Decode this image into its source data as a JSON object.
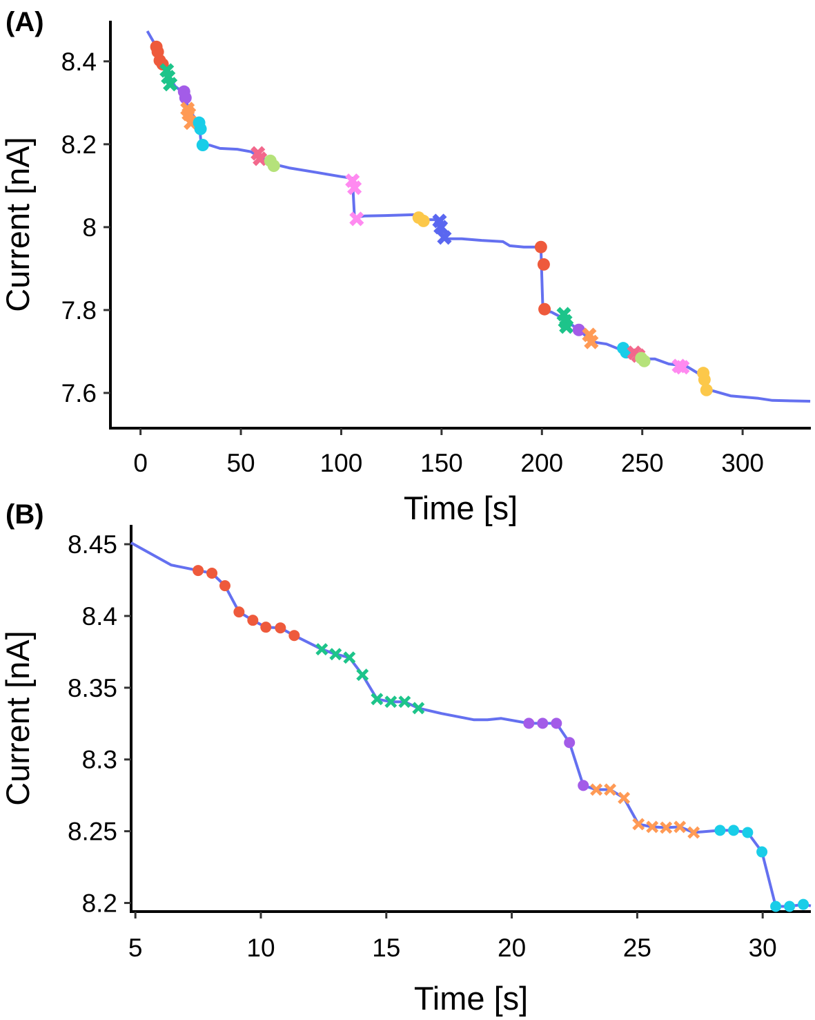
{
  "colors": {
    "line": "#6470F0",
    "red": "#EE5A3C",
    "green": "#1DC48A",
    "purple": "#A35CE8",
    "orange": "#FF9A55",
    "cyan": "#19CDE8",
    "rose": "#F2688C",
    "lime": "#B5E27A",
    "pink": "#FF8AF0",
    "yellow": "#FCC84A",
    "blue": "#5A67F0"
  },
  "chart_data": [
    {
      "panel_label": "(A)",
      "type": "line",
      "xlabel": "Time [s]",
      "ylabel": "Current [nA]",
      "xlim": [
        -15,
        334
      ],
      "ylim": [
        7.515,
        8.498
      ],
      "xticks": [
        0,
        50,
        100,
        150,
        200,
        250,
        300
      ],
      "xtick_labels": [
        "0",
        "50",
        "100",
        "150",
        "200",
        "250",
        "300"
      ],
      "yticks": [
        8.4,
        8.2,
        8.0,
        7.8,
        7.6
      ],
      "ytick_labels": [
        "8.4",
        "8.2",
        "8",
        "7.8",
        "7.6"
      ],
      "grid": false,
      "line": [
        [
          3.4,
          8.473
        ],
        [
          7.9,
          8.435
        ],
        [
          12,
          8.382
        ],
        [
          17.2,
          8.34
        ],
        [
          21.7,
          8.323
        ],
        [
          24.1,
          8.282
        ],
        [
          29.2,
          8.252
        ],
        [
          30.3,
          8.198
        ],
        [
          34.4,
          8.198
        ],
        [
          39.6,
          8.19
        ],
        [
          48.2,
          8.188
        ],
        [
          55,
          8.182
        ],
        [
          60.2,
          8.168
        ],
        [
          65.4,
          8.153
        ],
        [
          74,
          8.143
        ],
        [
          87.7,
          8.132
        ],
        [
          99.8,
          8.122
        ],
        [
          105.6,
          8.118
        ],
        [
          106.6,
          8.023
        ],
        [
          111.8,
          8.027
        ],
        [
          122,
          8.028
        ],
        [
          136,
          8.03
        ],
        [
          140.5,
          8.018
        ],
        [
          146.9,
          8.018
        ],
        [
          151.4,
          7.972
        ],
        [
          160,
          7.972
        ],
        [
          170,
          7.968
        ],
        [
          180.6,
          7.965
        ],
        [
          184,
          7.955
        ],
        [
          191,
          7.952
        ],
        [
          199.5,
          7.952
        ],
        [
          200.5,
          7.798
        ],
        [
          204.7,
          7.795
        ],
        [
          209.8,
          7.782
        ],
        [
          218.4,
          7.752
        ],
        [
          225.3,
          7.723
        ],
        [
          232.2,
          7.718
        ],
        [
          242.5,
          7.698
        ],
        [
          251,
          7.682
        ],
        [
          256.3,
          7.682
        ],
        [
          263.2,
          7.67
        ],
        [
          271.8,
          7.665
        ],
        [
          280.4,
          7.64
        ],
        [
          283.8,
          7.607
        ],
        [
          294,
          7.593
        ],
        [
          307.9,
          7.587
        ],
        [
          314.8,
          7.582
        ],
        [
          333.7,
          7.58
        ]
      ],
      "markers": [
        {
          "color": "red",
          "shape": "circle",
          "points": [
            [
              7.9,
              8.435
            ],
            [
              8.6,
              8.423
            ],
            [
              9.6,
              8.402
            ],
            [
              11,
              8.393
            ],
            [
              199.5,
              7.952
            ],
            [
              200.9,
              7.91
            ],
            [
              201.3,
              7.802
            ]
          ]
        },
        {
          "color": "green",
          "shape": "x",
          "points": [
            [
              13.1,
              8.378
            ],
            [
              13.8,
              8.362
            ],
            [
              14.8,
              8.345
            ],
            [
              210.9,
              7.79
            ],
            [
              211.6,
              7.773
            ],
            [
              212.2,
              7.76
            ]
          ]
        },
        {
          "color": "purple",
          "shape": "circle",
          "points": [
            [
              21.7,
              8.327
            ],
            [
              22.4,
              8.312
            ],
            [
              218.4,
              7.752
            ]
          ]
        },
        {
          "color": "orange",
          "shape": "x",
          "points": [
            [
              23.4,
              8.285
            ],
            [
              24.1,
              8.273
            ],
            [
              25.1,
              8.252
            ],
            [
              223.6,
              7.74
            ],
            [
              224.6,
              7.723
            ]
          ]
        },
        {
          "color": "cyan",
          "shape": "circle",
          "points": [
            [
              29.2,
              8.252
            ],
            [
              29.9,
              8.237
            ],
            [
              31,
              8.198
            ],
            [
              240.5,
              7.708
            ],
            [
              242,
              7.698
            ]
          ]
        },
        {
          "color": "rose",
          "shape": "x",
          "points": [
            [
              58.5,
              8.178
            ],
            [
              59.5,
              8.165
            ],
            [
              246,
              7.697
            ],
            [
              248,
              7.69
            ]
          ]
        },
        {
          "color": "lime",
          "shape": "circle",
          "points": [
            [
              64.7,
              8.16
            ],
            [
              66.4,
              8.148
            ],
            [
              249.5,
              7.684
            ],
            [
              251,
              7.677
            ]
          ]
        },
        {
          "color": "pink",
          "shape": "x",
          "points": [
            [
              105.6,
              8.112
            ],
            [
              106.6,
              8.095
            ],
            [
              107.7,
              8.02
            ],
            [
              268.3,
              7.665
            ],
            [
              270,
              7.662
            ]
          ]
        },
        {
          "color": "yellow",
          "shape": "circle",
          "points": [
            [
              138.6,
              8.023
            ],
            [
              141,
              8.015
            ],
            [
              280.4,
              7.648
            ],
            [
              281,
              7.632
            ],
            [
              282,
              7.607
            ]
          ]
        },
        {
          "color": "blue",
          "shape": "x",
          "points": [
            [
              149,
              8.015
            ],
            [
              149.6,
              8.0
            ],
            [
              151.4,
              7.975
            ]
          ]
        }
      ]
    },
    {
      "panel_label": "(B)",
      "type": "line",
      "xlabel": "Time [s]",
      "ylabel": "Current [nA]",
      "xlim": [
        4.83,
        31.92
      ],
      "ylim": [
        8.194,
        8.4635
      ],
      "xticks": [
        5,
        10,
        15,
        20,
        25,
        30
      ],
      "xtick_labels": [
        "5",
        "10",
        "15",
        "20",
        "25",
        "30"
      ],
      "yticks": [
        8.45,
        8.4,
        8.35,
        8.3,
        8.25,
        8.2
      ],
      "ytick_labels": [
        "8.45",
        "8.4",
        "8.35",
        "8.3",
        "8.25",
        "8.2"
      ],
      "grid": false,
      "line": [
        [
          4.83,
          8.451
        ],
        [
          6.43,
          8.4355
        ],
        [
          7.5,
          8.4317
        ],
        [
          8.05,
          8.4298
        ],
        [
          8.57,
          8.4211
        ],
        [
          9.13,
          8.4028
        ],
        [
          9.68,
          8.397
        ],
        [
          10.2,
          8.3922
        ],
        [
          10.78,
          8.3917
        ],
        [
          11.33,
          8.3864
        ],
        [
          12.43,
          8.3768
        ],
        [
          12.98,
          8.3734
        ],
        [
          13.53,
          8.371
        ],
        [
          14.05,
          8.359
        ],
        [
          14.63,
          8.3421
        ],
        [
          15.18,
          8.3402
        ],
        [
          15.73,
          8.3402
        ],
        [
          16.28,
          8.3358
        ],
        [
          17.2,
          8.332
        ],
        [
          18.48,
          8.3277
        ],
        [
          19.03,
          8.3277
        ],
        [
          19.58,
          8.3286
        ],
        [
          20.68,
          8.3252
        ],
        [
          21.23,
          8.3252
        ],
        [
          21.78,
          8.3252
        ],
        [
          22.3,
          8.3118
        ],
        [
          22.85,
          8.2819
        ],
        [
          23.37,
          8.279
        ],
        [
          23.92,
          8.279
        ],
        [
          24.47,
          8.2732
        ],
        [
          25.05,
          8.2549
        ],
        [
          25.6,
          8.253
        ],
        [
          26.15,
          8.2525
        ],
        [
          26.7,
          8.253
        ],
        [
          27.25,
          8.2491
        ],
        [
          28.3,
          8.2506
        ],
        [
          28.84,
          8.2506
        ],
        [
          29.4,
          8.2491
        ],
        [
          29.97,
          8.2356
        ],
        [
          30.52,
          8.1976
        ],
        [
          31.07,
          8.1976
        ],
        [
          31.62,
          8.199
        ],
        [
          31.92,
          8.198
        ]
      ],
      "markers": [
        {
          "color": "red",
          "shape": "circle",
          "points": [
            [
              7.5,
              8.4317
            ],
            [
              8.05,
              8.4298
            ],
            [
              8.57,
              8.4211
            ],
            [
              9.13,
              8.4028
            ],
            [
              9.68,
              8.397
            ],
            [
              10.2,
              8.3922
            ],
            [
              10.78,
              8.3917
            ],
            [
              11.33,
              8.3864
            ]
          ]
        },
        {
          "color": "green",
          "shape": "x",
          "points": [
            [
              12.43,
              8.3768
            ],
            [
              12.98,
              8.3734
            ],
            [
              13.53,
              8.371
            ],
            [
              14.05,
              8.359
            ],
            [
              14.63,
              8.3421
            ],
            [
              15.18,
              8.3402
            ],
            [
              15.73,
              8.3402
            ],
            [
              16.28,
              8.3358
            ]
          ]
        },
        {
          "color": "purple",
          "shape": "circle",
          "points": [
            [
              20.68,
              8.3252
            ],
            [
              21.23,
              8.3252
            ],
            [
              21.78,
              8.3252
            ],
            [
              22.3,
              8.3118
            ],
            [
              22.85,
              8.2819
            ]
          ]
        },
        {
          "color": "orange",
          "shape": "x",
          "points": [
            [
              23.37,
              8.279
            ],
            [
              23.92,
              8.279
            ],
            [
              24.47,
              8.2732
            ],
            [
              25.05,
              8.2549
            ],
            [
              25.6,
              8.253
            ],
            [
              26.15,
              8.2525
            ],
            [
              26.7,
              8.253
            ],
            [
              27.25,
              8.2491
            ]
          ]
        },
        {
          "color": "cyan",
          "shape": "circle",
          "points": [
            [
              28.3,
              8.2506
            ],
            [
              28.84,
              8.2506
            ],
            [
              29.4,
              8.2491
            ],
            [
              29.97,
              8.2356
            ],
            [
              30.52,
              8.1976
            ],
            [
              31.07,
              8.1976
            ],
            [
              31.62,
              8.199
            ]
          ]
        }
      ]
    }
  ]
}
